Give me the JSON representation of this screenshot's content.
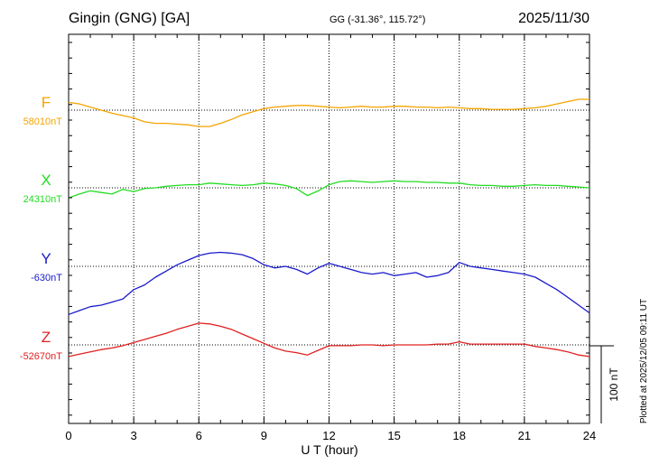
{
  "header": {
    "station": "Gingin (GNG)  [GA]",
    "coords": "GG (-31.36°, 115.72°)",
    "date": "2025/11/30"
  },
  "side_note": "Plotted at 2025/12/05 09:11 UT",
  "chart_data": {
    "type": "line",
    "title": "Gingin (GNG)  [GA]",
    "xlabel": "U T (hour)",
    "ylabel": "",
    "xlim": [
      0,
      24
    ],
    "x_ticks": [
      "0",
      "3",
      "6",
      "9",
      "12",
      "15",
      "18",
      "21",
      "24"
    ],
    "grid": true,
    "scale_bar": {
      "value": 100,
      "label": "100 nT"
    },
    "series": [
      {
        "name": "F",
        "baseline_label": "58010nT",
        "baseline_nT": 58010,
        "color": "#f5a400",
        "x": [
          0,
          0.5,
          1,
          1.5,
          2,
          2.5,
          3,
          3.5,
          4,
          4.5,
          5,
          5.5,
          6,
          6.5,
          7,
          7.5,
          8,
          8.5,
          9,
          9.5,
          10,
          10.5,
          11,
          11.5,
          12,
          12.5,
          13,
          13.5,
          14,
          14.5,
          15,
          15.5,
          16,
          16.5,
          17,
          17.5,
          18,
          18.5,
          19,
          19.5,
          20,
          20.5,
          21,
          21.5,
          22,
          22.5,
          23,
          23.5,
          24
        ],
        "y": [
          10,
          8,
          4,
          0,
          -4,
          -7,
          -10,
          -15,
          -17,
          -17,
          -18,
          -19,
          -21,
          -21,
          -17,
          -12,
          -6,
          -2,
          2,
          4,
          5,
          6,
          6,
          5,
          4,
          3,
          4,
          5,
          4,
          4,
          5,
          5,
          4,
          4,
          3,
          4,
          3,
          2,
          2,
          1,
          1,
          1,
          2,
          3,
          5,
          8,
          11,
          14,
          14
        ]
      },
      {
        "name": "X",
        "baseline_label": "24310nT",
        "baseline_nT": 24310,
        "color": "#22dd22",
        "x": [
          0,
          0.5,
          1,
          1.5,
          2,
          2.5,
          3,
          3.5,
          4,
          4.5,
          5,
          5.5,
          6,
          6.5,
          7,
          7.5,
          8,
          8.5,
          9,
          9.5,
          10,
          10.5,
          11,
          11.5,
          12,
          12.5,
          13,
          13.5,
          14,
          14.5,
          15,
          15.5,
          16,
          16.5,
          17,
          17.5,
          18,
          18.5,
          19,
          19.5,
          20,
          20.5,
          21,
          21.5,
          22,
          22.5,
          23,
          23.5,
          24
        ],
        "y": [
          -13,
          -8,
          -4,
          -6,
          -8,
          -2,
          -5,
          -1,
          0,
          2,
          3,
          4,
          4,
          6,
          5,
          4,
          3,
          4,
          6,
          5,
          3,
          -1,
          -10,
          -4,
          4,
          8,
          9,
          8,
          7,
          8,
          9,
          8,
          8,
          7,
          7,
          6,
          6,
          4,
          3,
          3,
          2,
          2,
          3,
          4,
          3,
          3,
          2,
          1,
          0
        ]
      },
      {
        "name": "Y",
        "baseline_label": "-630nT",
        "baseline_nT": -630,
        "color": "#1a1acc",
        "x": [
          0,
          0.5,
          1,
          1.5,
          2,
          2.5,
          3,
          3.5,
          4,
          4.5,
          5,
          5.5,
          6,
          6.5,
          7,
          7.5,
          8,
          8.5,
          9,
          9.5,
          10,
          10.5,
          11,
          11.5,
          12,
          12.5,
          13,
          13.5,
          14,
          14.5,
          15,
          15.5,
          16,
          16.5,
          17,
          17.5,
          18,
          18.5,
          19,
          19.5,
          20,
          20.5,
          21,
          21.5,
          22,
          22.5,
          23,
          23.5,
          24
        ],
        "y": [
          -62,
          -57,
          -52,
          -50,
          -46,
          -42,
          -30,
          -24,
          -14,
          -6,
          2,
          8,
          14,
          17,
          18,
          17,
          15,
          10,
          2,
          -2,
          0,
          -4,
          -10,
          -2,
          4,
          0,
          -4,
          -8,
          -10,
          -8,
          -12,
          -10,
          -8,
          -14,
          -12,
          -8,
          5,
          0,
          -2,
          -4,
          -6,
          -8,
          -10,
          -14,
          -22,
          -30,
          -40,
          -50,
          -60
        ]
      },
      {
        "name": "Z",
        "baseline_label": "-52670nT",
        "baseline_nT": -52670,
        "color": "#e02020",
        "x": [
          0,
          0.5,
          1,
          1.5,
          2,
          2.5,
          3,
          3.5,
          4,
          4.5,
          5,
          5.5,
          6,
          6.5,
          7,
          7.5,
          8,
          8.5,
          9,
          9.5,
          10,
          10.5,
          11,
          11.5,
          12,
          12.5,
          13,
          13.5,
          14,
          14.5,
          15,
          15.5,
          16,
          16.5,
          17,
          17.5,
          18,
          18.5,
          19,
          19.5,
          20,
          20.5,
          21,
          21.5,
          22,
          22.5,
          23,
          23.5,
          24
        ],
        "y": [
          -15,
          -12,
          -9,
          -6,
          -4,
          -1,
          3,
          7,
          11,
          15,
          20,
          24,
          28,
          27,
          24,
          20,
          14,
          8,
          2,
          -4,
          -8,
          -10,
          -13,
          -7,
          -1,
          -1,
          -1,
          0,
          0,
          -1,
          0,
          0,
          0,
          0,
          1,
          1,
          4,
          1,
          1,
          1,
          1,
          1,
          1,
          -2,
          -4,
          -6,
          -9,
          -13,
          -15
        ]
      }
    ]
  }
}
